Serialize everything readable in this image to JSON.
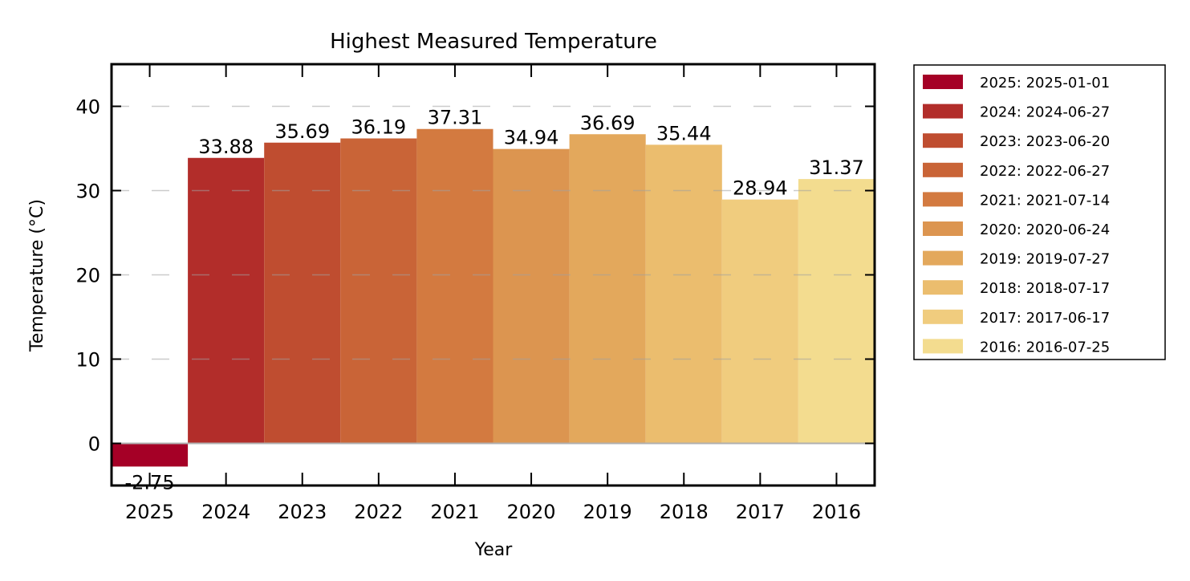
{
  "chart_data": {
    "type": "bar",
    "title": "Highest Measured Temperature",
    "xlabel": "Year",
    "ylabel": "Temperature (°C)",
    "ylim": [
      -5,
      45
    ],
    "yticks": [
      0,
      10,
      20,
      30,
      40
    ],
    "ytick_labels": [
      "0",
      "10",
      "20",
      "30",
      "40"
    ],
    "grid": "y dashed",
    "legend_position": "outside right, top",
    "categories": [
      "2025",
      "2024",
      "2023",
      "2022",
      "2021",
      "2020",
      "2019",
      "2018",
      "2017",
      "2016"
    ],
    "values": [
      -2.75,
      33.88,
      35.69,
      36.19,
      37.31,
      34.94,
      36.69,
      35.44,
      28.94,
      31.37
    ],
    "data_labels": [
      "-2.75",
      "33.88",
      "35.69",
      "36.19",
      "37.31",
      "34.94",
      "36.69",
      "35.44",
      "28.94",
      "31.37"
    ],
    "colors": [
      "#a50026",
      "#b22d2a",
      "#bf4d30",
      "#c96437",
      "#d37a40",
      "#dc9550",
      "#e3a85c",
      "#ebbd6e",
      "#f0cc7e",
      "#f3dc8f"
    ],
    "legend": [
      "2025: 2025-01-01",
      "2024: 2024-06-27",
      "2023: 2023-06-20",
      "2022: 2022-06-27",
      "2021: 2021-07-14",
      "2020: 2020-06-24",
      "2019: 2019-07-27",
      "2018: 2018-07-17",
      "2017: 2017-06-17",
      "2016: 2016-07-25"
    ]
  }
}
